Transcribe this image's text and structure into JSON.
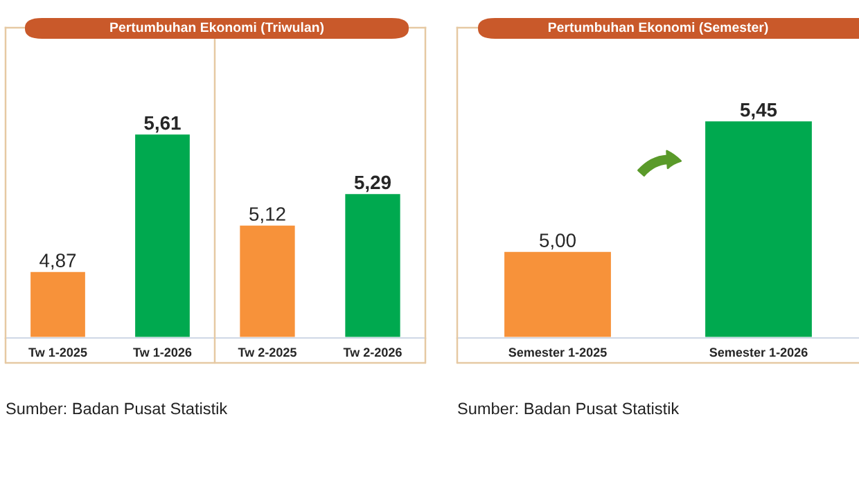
{
  "chart_data": [
    {
      "type": "bar",
      "title": "Pertumbuhan Ekonomi (Triwulan)",
      "categories": [
        "Tw 1-2025",
        "Tw 1-2026"
      ],
      "values": [
        4.87,
        5.61
      ],
      "colors": [
        "#f7923a",
        "#00a94f"
      ],
      "value_labels": [
        "4,87",
        "5,61"
      ],
      "ylim": [
        4.51,
        6.18
      ],
      "tick_labels": "x",
      "grid": false,
      "legend": false,
      "annotations": [
        "Sumber: Badan Pusat Statistik"
      ]
    },
    {
      "type": "bar",
      "categories": [
        "Tw 2-2025",
        "Tw 2-2026"
      ],
      "values": [
        5.12,
        5.29
      ],
      "colors": [
        "#f7923a",
        "#00a94f"
      ],
      "value_labels": [
        "5,12",
        "5,29"
      ],
      "ylim": [
        4.51,
        6.18
      ],
      "tick_labels": "x",
      "grid": false,
      "legend": false
    },
    {
      "type": "bar",
      "title": "Pertumbuhan Ekonomi (Semester)",
      "categories": [
        "Semester 1-2025",
        "Semester 1-2026"
      ],
      "values": [
        5.0,
        5.45
      ],
      "colors": [
        "#f7923a",
        "#00a94f"
      ],
      "value_labels": [
        "5,00",
        "5,45"
      ],
      "ylim": [
        4.7,
        5.77
      ],
      "tick_labels": "x",
      "grid": false,
      "legend": false,
      "annotations": [
        "Sumber: Badan Pusat Statistik"
      ]
    }
  ]
}
